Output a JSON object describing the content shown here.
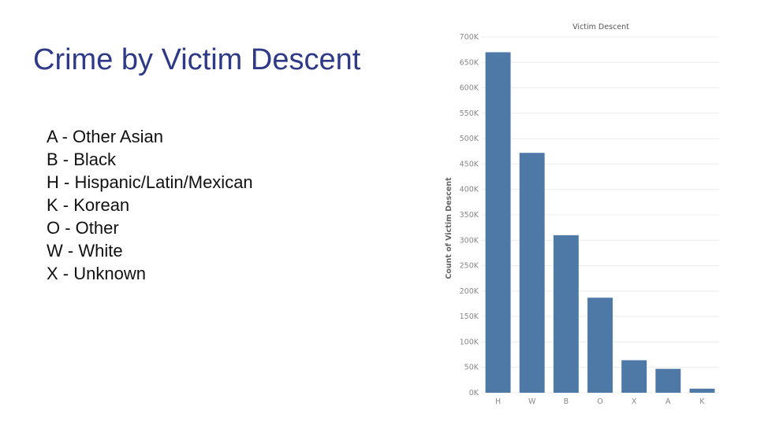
{
  "slide": {
    "title": "Crime by Victim Descent",
    "legend_items": [
      "A - Other Asian",
      "B - Black",
      "H - Hispanic/Latin/Mexican",
      "K - Korean",
      "O - Other",
      "W - White",
      "X - Unknown"
    ]
  },
  "chart_data": {
    "type": "bar",
    "title": "Victim Descent",
    "ylabel": "Count of Victim Descent",
    "xlabel": "",
    "categories": [
      "H",
      "W",
      "B",
      "O",
      "X",
      "A",
      "K"
    ],
    "values": [
      670000,
      472000,
      310000,
      187000,
      64000,
      47000,
      8000
    ],
    "ylim": [
      0,
      700000
    ],
    "yticks": [
      0,
      50000,
      100000,
      150000,
      200000,
      250000,
      300000,
      350000,
      400000,
      450000,
      500000,
      550000,
      600000,
      650000,
      700000
    ],
    "ytick_labels": [
      "0K",
      "50K",
      "100K",
      "150K",
      "200K",
      "250K",
      "300K",
      "350K",
      "400K",
      "450K",
      "500K",
      "550K",
      "600K",
      "650K",
      "700K"
    ],
    "bar_color": "#4e79a7",
    "grid": true
  }
}
